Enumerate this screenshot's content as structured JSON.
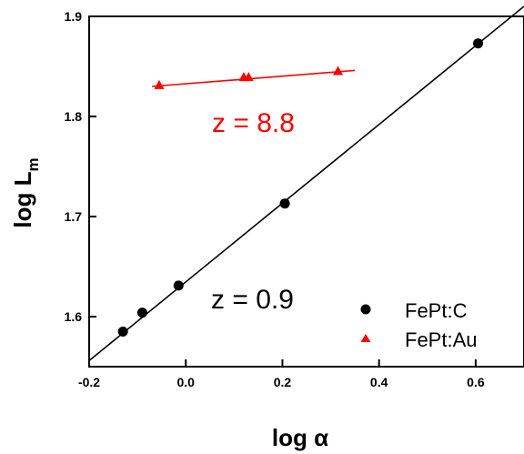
{
  "chart_data": {
    "type": "scatter",
    "xlabel": "log α",
    "ylabel_main": "log L",
    "ylabel_sub": "m",
    "xlim": [
      -0.2,
      0.7
    ],
    "ylim": [
      1.55,
      1.9
    ],
    "xticks": [
      -0.2,
      0.0,
      0.2,
      0.4,
      0.6
    ],
    "xtick_labels": [
      "-0.2",
      "0.0",
      "0.2",
      "0.4",
      "0.6"
    ],
    "yticks": [
      1.6,
      1.7,
      1.8,
      1.9
    ],
    "ytick_labels": [
      "1.6",
      "1.7",
      "1.8",
      "1.9"
    ],
    "grid": false,
    "legend_position": "bottom-right",
    "series": [
      {
        "name": "FePt:C",
        "marker": "circle",
        "color": "#000000",
        "x": [
          -0.13,
          -0.09,
          -0.015,
          0.205,
          0.605
        ],
        "y": [
          1.585,
          1.604,
          1.631,
          1.713,
          1.873
        ],
        "fit_line": {
          "x": [
            -0.2,
            0.7
          ],
          "y": [
            1.556,
            1.91
          ]
        }
      },
      {
        "name": "FePt:Au",
        "marker": "triangle",
        "color": "#ff0000",
        "x": [
          -0.055,
          0.12,
          0.13,
          0.315
        ],
        "y": [
          1.831,
          1.839,
          1.839,
          1.845
        ],
        "fit_line": {
          "x": [
            -0.07,
            0.35
          ],
          "y": [
            1.83,
            1.846
          ]
        }
      }
    ],
    "annotations": [
      {
        "text": "z = 8.8",
        "color": "#ff0000"
      },
      {
        "text": "z = 0.9",
        "color": "#000000"
      }
    ]
  }
}
